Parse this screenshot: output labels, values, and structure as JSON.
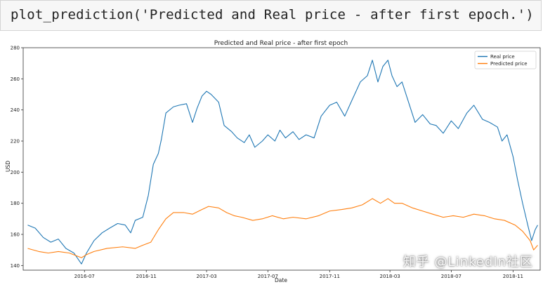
{
  "code_cell": {
    "text": "plot_prediction('Predicted and Real price - after first epoch.')"
  },
  "chart_data": {
    "type": "line",
    "title": "Predicted and Real price - after first epoch",
    "xlabel": "Date",
    "ylabel": "USD",
    "ylim": [
      137,
      280
    ],
    "xlim": [
      "2016-03-01",
      "2018-12-25"
    ],
    "x_ticks": [
      "2016-07",
      "2016-11",
      "2017-03",
      "2017-07",
      "2017-11",
      "2018-03",
      "2018-07",
      "2018-11"
    ],
    "y_ticks": [
      140,
      160,
      180,
      200,
      220,
      240,
      260,
      280
    ],
    "grid": false,
    "legend": "top-right",
    "series": [
      {
        "name": "Real price",
        "color": "#1f77b4",
        "points": [
          [
            "2016-03-10",
            166
          ],
          [
            "2016-03-25",
            164
          ],
          [
            "2016-04-10",
            158
          ],
          [
            "2016-04-25",
            155
          ],
          [
            "2016-05-10",
            157
          ],
          [
            "2016-05-25",
            151
          ],
          [
            "2016-06-10",
            148
          ],
          [
            "2016-06-25",
            141
          ],
          [
            "2016-07-05",
            148
          ],
          [
            "2016-07-20",
            156
          ],
          [
            "2016-08-05",
            161
          ],
          [
            "2016-08-20",
            164
          ],
          [
            "2016-09-05",
            167
          ],
          [
            "2016-09-20",
            166
          ],
          [
            "2016-10-01",
            161
          ],
          [
            "2016-10-10",
            169
          ],
          [
            "2016-10-25",
            171
          ],
          [
            "2016-11-05",
            185
          ],
          [
            "2016-11-15",
            205
          ],
          [
            "2016-11-25",
            212
          ],
          [
            "2016-12-01",
            221
          ],
          [
            "2016-12-10",
            238
          ],
          [
            "2016-12-25",
            242
          ],
          [
            "2017-01-05",
            243
          ],
          [
            "2017-01-20",
            244
          ],
          [
            "2017-02-01",
            232
          ],
          [
            "2017-02-10",
            241
          ],
          [
            "2017-02-20",
            249
          ],
          [
            "2017-03-01",
            252
          ],
          [
            "2017-03-10",
            250
          ],
          [
            "2017-03-25",
            245
          ],
          [
            "2017-04-05",
            230
          ],
          [
            "2017-04-20",
            226
          ],
          [
            "2017-05-01",
            222
          ],
          [
            "2017-05-15",
            219
          ],
          [
            "2017-05-25",
            224
          ],
          [
            "2017-06-05",
            216
          ],
          [
            "2017-06-20",
            220
          ],
          [
            "2017-07-01",
            224
          ],
          [
            "2017-07-15",
            220
          ],
          [
            "2017-07-25",
            227
          ],
          [
            "2017-08-05",
            222
          ],
          [
            "2017-08-20",
            226
          ],
          [
            "2017-09-01",
            221
          ],
          [
            "2017-09-15",
            224
          ],
          [
            "2017-10-01",
            222
          ],
          [
            "2017-10-15",
            236
          ],
          [
            "2017-11-01",
            243
          ],
          [
            "2017-11-15",
            245
          ],
          [
            "2017-12-01",
            236
          ],
          [
            "2017-12-15",
            246
          ],
          [
            "2018-01-01",
            258
          ],
          [
            "2018-01-15",
            262
          ],
          [
            "2018-01-25",
            272
          ],
          [
            "2018-02-05",
            258
          ],
          [
            "2018-02-15",
            268
          ],
          [
            "2018-02-25",
            272
          ],
          [
            "2018-03-05",
            262
          ],
          [
            "2018-03-15",
            255
          ],
          [
            "2018-03-25",
            258
          ],
          [
            "2018-04-05",
            247
          ],
          [
            "2018-04-20",
            232
          ],
          [
            "2018-05-05",
            237
          ],
          [
            "2018-05-20",
            231
          ],
          [
            "2018-06-01",
            230
          ],
          [
            "2018-06-15",
            225
          ],
          [
            "2018-07-01",
            233
          ],
          [
            "2018-07-15",
            228
          ],
          [
            "2018-08-01",
            238
          ],
          [
            "2018-08-15",
            243
          ],
          [
            "2018-09-01",
            234
          ],
          [
            "2018-09-15",
            232
          ],
          [
            "2018-10-01",
            229
          ],
          [
            "2018-10-10",
            220
          ],
          [
            "2018-10-20",
            224
          ],
          [
            "2018-11-01",
            210
          ],
          [
            "2018-11-10",
            195
          ],
          [
            "2018-11-20",
            180
          ],
          [
            "2018-12-01",
            165
          ],
          [
            "2018-12-08",
            156
          ],
          [
            "2018-12-15",
            163
          ],
          [
            "2018-12-20",
            166
          ]
        ]
      },
      {
        "name": "Predicted price",
        "color": "#ff7f0e",
        "points": [
          [
            "2016-03-10",
            151
          ],
          [
            "2016-04-01",
            149
          ],
          [
            "2016-04-20",
            148
          ],
          [
            "2016-05-10",
            149
          ],
          [
            "2016-06-01",
            148
          ],
          [
            "2016-06-25",
            145
          ],
          [
            "2016-07-05",
            147
          ],
          [
            "2016-07-20",
            149
          ],
          [
            "2016-08-15",
            151
          ],
          [
            "2016-09-15",
            152
          ],
          [
            "2016-10-10",
            151
          ],
          [
            "2016-10-25",
            153
          ],
          [
            "2016-11-10",
            155
          ],
          [
            "2016-11-25",
            163
          ],
          [
            "2016-12-10",
            170
          ],
          [
            "2016-12-25",
            174
          ],
          [
            "2017-01-15",
            174
          ],
          [
            "2017-02-01",
            173
          ],
          [
            "2017-02-20",
            176
          ],
          [
            "2017-03-05",
            178
          ],
          [
            "2017-03-25",
            177
          ],
          [
            "2017-04-10",
            174
          ],
          [
            "2017-04-25",
            172
          ],
          [
            "2017-05-10",
            171
          ],
          [
            "2017-06-01",
            169
          ],
          [
            "2017-06-20",
            170
          ],
          [
            "2017-07-10",
            172
          ],
          [
            "2017-08-01",
            170
          ],
          [
            "2017-08-20",
            171
          ],
          [
            "2017-09-15",
            170
          ],
          [
            "2017-10-10",
            172
          ],
          [
            "2017-11-01",
            175
          ],
          [
            "2017-11-25",
            176
          ],
          [
            "2017-12-15",
            177
          ],
          [
            "2018-01-05",
            179
          ],
          [
            "2018-01-25",
            183
          ],
          [
            "2018-02-10",
            180
          ],
          [
            "2018-02-25",
            183
          ],
          [
            "2018-03-10",
            180
          ],
          [
            "2018-03-25",
            180
          ],
          [
            "2018-04-15",
            177
          ],
          [
            "2018-05-05",
            175
          ],
          [
            "2018-05-25",
            173
          ],
          [
            "2018-06-15",
            171
          ],
          [
            "2018-07-05",
            172
          ],
          [
            "2018-07-25",
            171
          ],
          [
            "2018-08-15",
            173
          ],
          [
            "2018-09-05",
            172
          ],
          [
            "2018-09-25",
            170
          ],
          [
            "2018-10-15",
            169
          ],
          [
            "2018-11-05",
            166
          ],
          [
            "2018-11-20",
            162
          ],
          [
            "2018-12-05",
            156
          ],
          [
            "2018-12-12",
            150
          ],
          [
            "2018-12-20",
            153
          ]
        ]
      }
    ]
  },
  "watermark": {
    "text": "知乎 @LinkedIn社区"
  }
}
